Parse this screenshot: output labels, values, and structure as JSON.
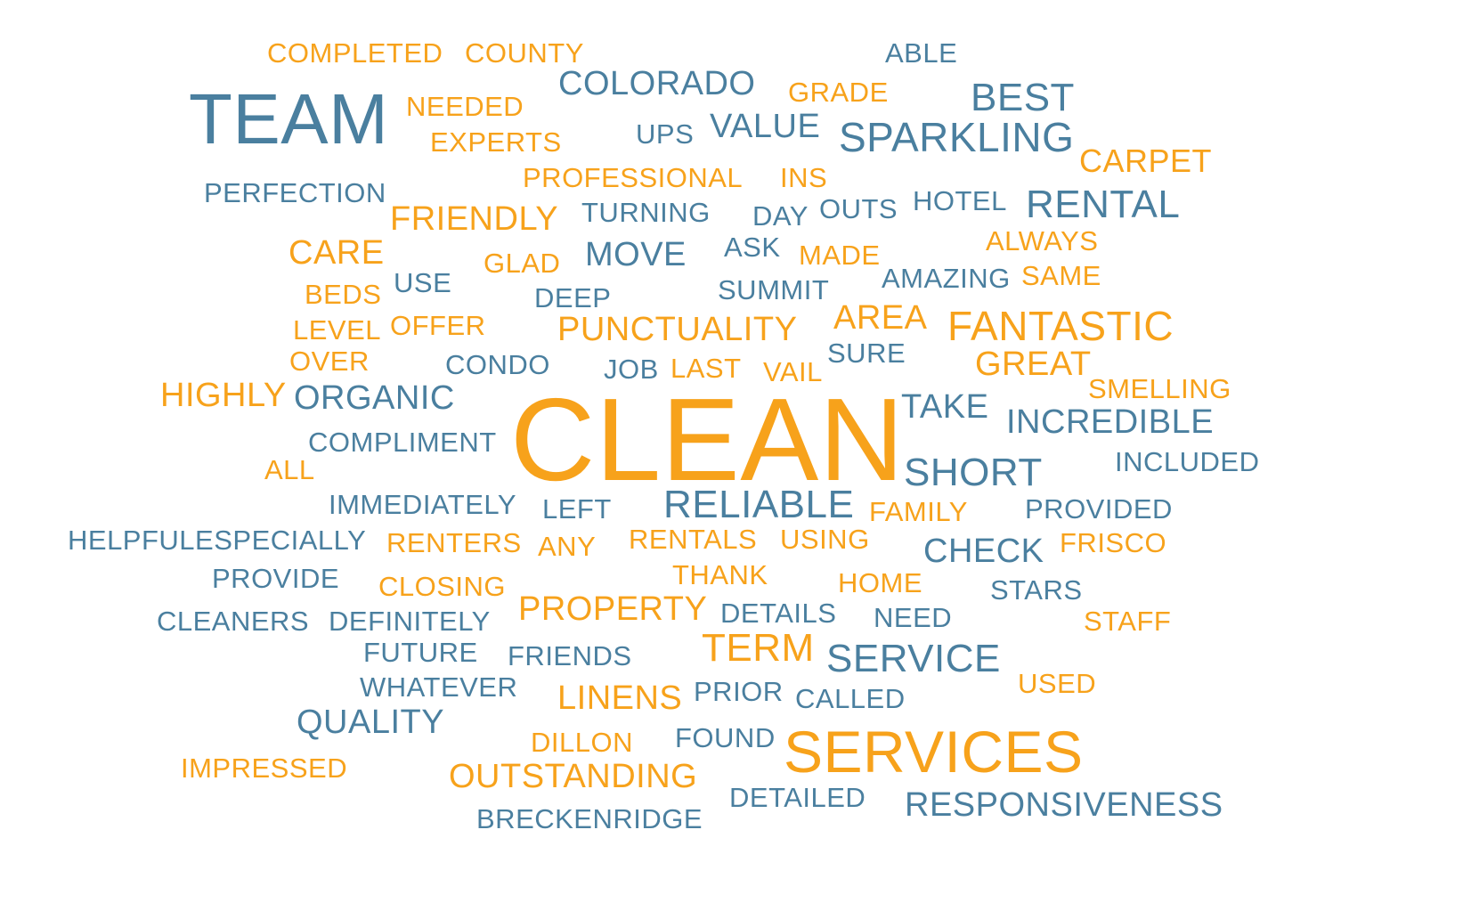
{
  "colors": {
    "orange": "#f7a21b",
    "blue": "#4a7f9f"
  },
  "words": {
    "completed": "COMPLETED",
    "county": "COUNTY",
    "able": "ABLE",
    "team": "TEAM",
    "needed": "NEEDED",
    "colorado": "COLORADO",
    "grade": "GRADE",
    "best": "BEST",
    "experts": "EXPERTS",
    "ups": "UPS",
    "value": "VALUE",
    "sparkling": "SPARKLING",
    "carpet": "CARPET",
    "professional": "PROFESSIONAL",
    "ins": "INS",
    "perfection": "PERFECTION",
    "hotel": "HOTEL",
    "rental": "RENTAL",
    "friendly": "FRIENDLY",
    "turning": "TURNING",
    "day": "DAY",
    "outs": "OUTS",
    "always": "ALWAYS",
    "care": "CARE",
    "glad": "GLAD",
    "move": "MOVE",
    "ask": "ASK",
    "made": "MADE",
    "amazing": "AMAZING",
    "same": "SAME",
    "beds": "BEDS",
    "use": "USE",
    "deep": "DEEP",
    "summit": "SUMMIT",
    "area": "AREA",
    "fantastic": "FANTASTIC",
    "level": "LEVEL",
    "offer": "OFFER",
    "punctuality": "PUNCTUALITY",
    "sure": "SURE",
    "over": "OVER",
    "condo": "CONDO",
    "job": "JOB",
    "last": "LAST",
    "vail": "VAIL",
    "great": "GREAT",
    "highly": "HIGHLY",
    "organic": "ORGANIC",
    "smelling": "SMELLING",
    "clean": "CLEAN",
    "take": "TAKE",
    "incredible": "INCREDIBLE",
    "compliment": "COMPLIMENT",
    "all": "ALL",
    "short": "SHORT",
    "included": "INCLUDED",
    "immediately": "IMMEDIATELY",
    "left": "LEFT",
    "reliable": "RELIABLE",
    "family": "FAMILY",
    "provided": "PROVIDED",
    "helpfulespecially": "HELPFULESPECIALLY",
    "renters": "RENTERS",
    "any": "ANY",
    "rentals": "RENTALS",
    "using": "USING",
    "check": "CHECK",
    "frisco": "FRISCO",
    "provide": "PROVIDE",
    "closing": "CLOSING",
    "thank": "THANK",
    "home": "HOME",
    "stars": "STARS",
    "cleaners": "CLEANERS",
    "definitely": "DEFINITELY",
    "property": "PROPERTY",
    "details": "DETAILS",
    "need": "NEED",
    "staff": "STAFF",
    "future": "FUTURE",
    "friends": "FRIENDS",
    "term": "TERM",
    "service": "SERVICE",
    "whatever": "WHATEVER",
    "linens": "LINENS",
    "prior": "PRIOR",
    "called": "CALLED",
    "used": "USED",
    "quality": "QUALITY",
    "dillon": "DILLON",
    "found": "FOUND",
    "services": "SERVICES",
    "impressed": "IMPRESSED",
    "outstanding": "OUTSTANDING",
    "detailed": "DETAILED",
    "responsiveness": "RESPONSIVENESS",
    "breckenridge": "BRECKENRIDGE"
  }
}
